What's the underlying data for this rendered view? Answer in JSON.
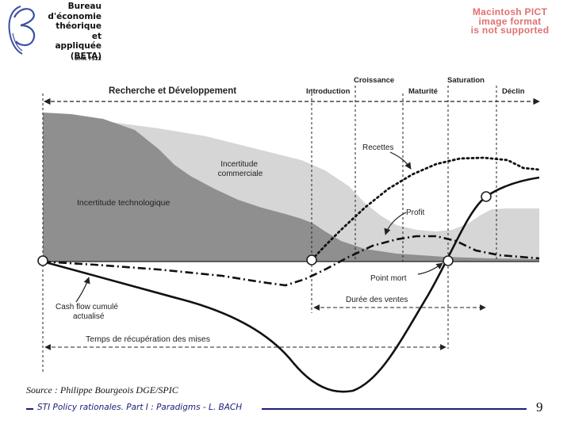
{
  "logo": {
    "lines": [
      "Bureau",
      "d'économie",
      "théorique",
      "et appliquée",
      "(BETA)"
    ],
    "umr": "UMR 7522"
  },
  "pict_placeholder": [
    "Macintosh PICT",
    "image format",
    "is not supported"
  ],
  "diagram": {
    "phases": {
      "rd": "Recherche et Développement",
      "introduction": "Introduction",
      "croissance": "Croissance",
      "maturite": "Maturité",
      "saturation": "Saturation",
      "declin": "Déclin"
    },
    "labels": {
      "incertitude_commerciale_1": "Incertitude",
      "incertitude_commerciale_2": "commerciale",
      "incertitude_technologique": "Incertitude technologique",
      "recettes": "Recettes",
      "profit": "Profit",
      "point_mort": "Point mort",
      "cash_flow_1": "Cash flow cumulé",
      "cash_flow_2": "actualisé",
      "duree_ventes": "Durée des ventes",
      "temps_recuperation": "Temps de récupération des mises"
    },
    "colors": {
      "tech_area": "#8f8f8f",
      "comm_area": "#d6d6d6",
      "curve": "#111111"
    }
  },
  "footer": {
    "source": "Source : Philippe Bourgeois DGE/SPIC",
    "text": "STI Policy rationales. Part I : Paradigms - L. BACH",
    "page": "9"
  }
}
